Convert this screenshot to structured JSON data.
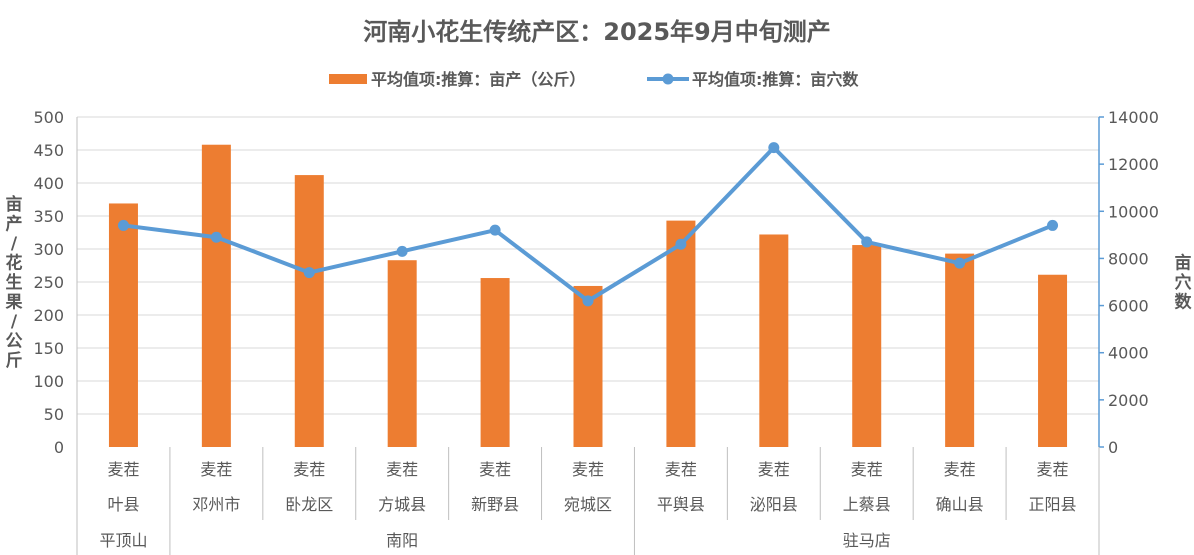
{
  "chart_data": {
    "type": "bar",
    "title": "河南小花生传统产区：2025年9月中旬测产",
    "legend": {
      "position": "top",
      "entries": [
        "平均值项:推算：亩产（公斤）",
        "平均值项:推算：亩穴数"
      ]
    },
    "ylabel": "亩产/花生果/公斤",
    "y2label": "亩穴数",
    "ylim": [
      0,
      500
    ],
    "y2lim": [
      0,
      14000
    ],
    "yticks": [
      "0",
      "50",
      "100",
      "150",
      "200",
      "250",
      "300",
      "350",
      "400",
      "450",
      "500"
    ],
    "y2ticks": [
      "0",
      "2000",
      "4000",
      "6000",
      "8000",
      "10000",
      "12000",
      "14000"
    ],
    "crop_labels": [
      "麦茬",
      "麦茬",
      "麦茬",
      "麦茬",
      "麦茬",
      "麦茬",
      "麦茬",
      "麦茬",
      "麦茬",
      "麦茬",
      "麦茬"
    ],
    "categories": [
      "叶县",
      "邓州市",
      "卧龙区",
      "方城县",
      "新野县",
      "宛城区",
      "平舆县",
      "泌阳县",
      "上蔡县",
      "确山县",
      "正阳县"
    ],
    "regions": [
      {
        "name": "平顶山",
        "count": 1
      },
      {
        "name": "南阳",
        "count": 5
      },
      {
        "name": "驻马店",
        "count": 5
      }
    ],
    "series": [
      {
        "name": "平均值项:推算：亩产（公斤）",
        "type": "bar",
        "axis": "left",
        "color": "#ED7D31",
        "values": [
          369,
          458,
          412,
          283,
          256,
          244,
          343,
          322,
          306,
          293,
          261
        ]
      },
      {
        "name": "平均值项:推算：亩穴数",
        "type": "line",
        "axis": "right",
        "color": "#5B9BD5",
        "values": [
          9400,
          8900,
          7400,
          8300,
          9200,
          6200,
          8600,
          12700,
          8700,
          7800,
          9400
        ]
      }
    ],
    "grid": true
  }
}
